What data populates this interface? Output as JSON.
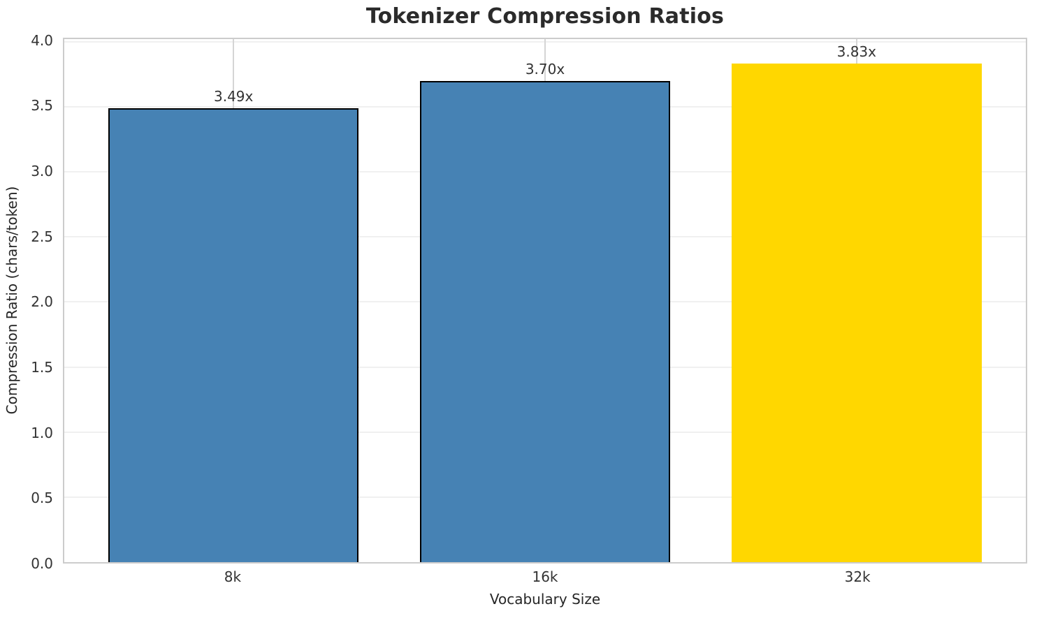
{
  "chart_data": {
    "type": "bar",
    "title": "Tokenizer Compression Ratios",
    "xlabel": "Vocabulary Size",
    "ylabel": "Compression Ratio (chars/token)",
    "categories": [
      "8k",
      "16k",
      "32k"
    ],
    "values": [
      3.49,
      3.7,
      3.83
    ],
    "bar_labels": [
      "3.49x",
      "3.70x",
      "3.83x"
    ],
    "bar_colors": [
      "#4682B4",
      "#4682B4",
      "#FFD700"
    ],
    "bar_edge_colors": [
      "#000000",
      "#000000",
      "#FFD700"
    ],
    "bar_edge_widths": [
      2,
      2,
      0
    ],
    "ylim": [
      0,
      4.02
    ],
    "yticks": [
      0,
      0.5,
      1,
      1.5,
      2,
      2.5,
      3,
      3.5,
      4
    ],
    "ytick_labels": [
      "0.0",
      "0.5",
      "1.0",
      "1.5",
      "2.0",
      "2.5",
      "3.0",
      "3.5",
      "4.0"
    ],
    "x_centers_pct": [
      17.6,
      50,
      82.4
    ],
    "bar_width_pct": 26.0,
    "grid": true,
    "legend": "none",
    "style": {
      "h_grid_color": "#f0f0f0",
      "v_grid_color": "#d5d5d5",
      "spine_color": "#cccccc",
      "title_color": "#2b2b2b",
      "text_color": "#333333"
    }
  }
}
